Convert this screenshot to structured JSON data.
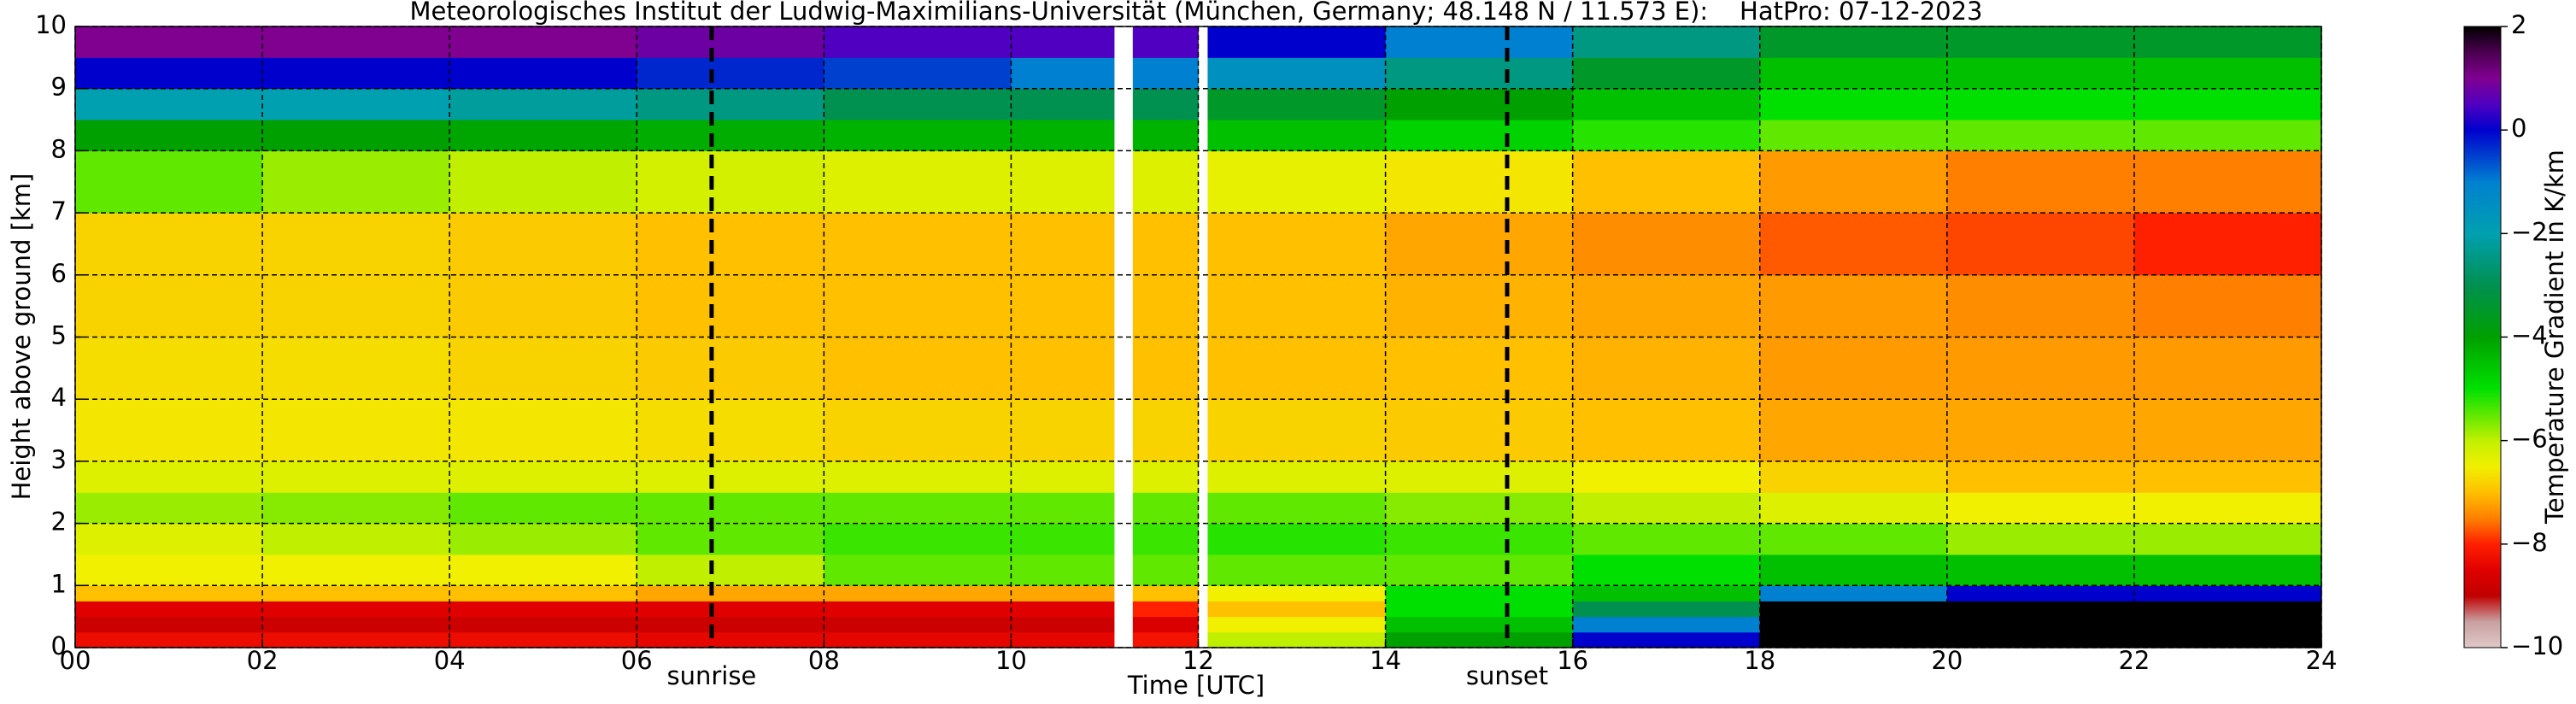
{
  "chart_data": {
    "type": "heatmap",
    "title": "Meteorologisches Institut der Ludwig-Maximilians-Universität (München, Germany; 48.148 N / 11.573 E):    HatPro: 07-12-2023",
    "xlabel": "Time [UTC]",
    "ylabel": "Height above ground [km]",
    "colorbar_label": "Temperature Gradient in K/km",
    "x_edges": [
      0,
      2,
      4,
      6,
      8,
      10,
      11.1,
      11.3,
      12.0,
      12.1,
      14,
      16,
      18,
      20,
      22,
      24
    ],
    "y_edges": [
      0,
      0.25,
      0.5,
      0.75,
      1,
      1.5,
      2,
      2.5,
      3,
      4,
      5,
      6,
      7,
      8,
      8.5,
      9,
      9.5,
      10
    ],
    "values": [
      [
        -8.3,
        -8.3,
        -8.3,
        -8.4,
        -8.4,
        -8.4,
        null,
        -8.2,
        null,
        -6,
        -4,
        0,
        2,
        2,
        2
      ],
      [
        -8.8,
        -8.8,
        -8.8,
        -8.8,
        -8.8,
        -8.8,
        null,
        -8.6,
        null,
        -6.5,
        -4.5,
        -1,
        2,
        2,
        2
      ],
      [
        -8.5,
        -8.5,
        -8.5,
        -8.5,
        -8.5,
        -8.5,
        null,
        -8,
        null,
        -7,
        -5,
        -3,
        2,
        2,
        2
      ],
      [
        -7,
        -7,
        -7,
        -7.2,
        -7.2,
        -7.2,
        null,
        -7,
        null,
        -6.5,
        -5,
        -4.5,
        -1,
        0,
        0
      ],
      [
        -6.5,
        -6.5,
        -6.5,
        -6,
        -5.5,
        -5.5,
        null,
        -5.5,
        null,
        -5.5,
        -5.5,
        -5,
        -4.5,
        -4.5,
        -4.5
      ],
      [
        -6.3,
        -6,
        -5.8,
        -5.5,
        -5.3,
        -5.3,
        null,
        -5.3,
        null,
        -5.2,
        -5.3,
        -5.5,
        -5.5,
        -5.8,
        -5.8
      ],
      [
        -5.8,
        -5.7,
        -5.5,
        -5.5,
        -5.5,
        -5.5,
        null,
        -5.5,
        null,
        -5.5,
        -5.7,
        -6,
        -6.3,
        -6.5,
        -6.5
      ],
      [
        -6.3,
        -6.3,
        -6.3,
        -6.3,
        -6.3,
        -6.3,
        null,
        -6.3,
        null,
        -6.3,
        -6.3,
        -6.5,
        -6.8,
        -7,
        -7
      ],
      [
        -6.6,
        -6.6,
        -6.6,
        -6.7,
        -6.8,
        -6.8,
        null,
        -6.8,
        null,
        -6.8,
        -6.9,
        -7,
        -7.2,
        -7.2,
        -7.2
      ],
      [
        -6.7,
        -6.7,
        -6.8,
        -6.9,
        -7,
        -7,
        null,
        -7,
        null,
        -7,
        -7,
        -7.1,
        -7.3,
        -7.3,
        -7.3
      ],
      [
        -6.8,
        -6.8,
        -6.9,
        -7,
        -7,
        -7,
        null,
        -7,
        null,
        -7,
        -7.1,
        -7.2,
        -7.3,
        -7.4,
        -7.5
      ],
      [
        -6.8,
        -6.8,
        -6.9,
        -7,
        -7,
        -7,
        null,
        -7,
        null,
        -7,
        -7.2,
        -7.4,
        -7.7,
        -7.8,
        -8
      ],
      [
        -5.5,
        -5.8,
        -6,
        -6.2,
        -6.3,
        -6.3,
        null,
        -6.3,
        null,
        -6.4,
        -6.6,
        -7,
        -7.3,
        -7.5,
        -7.5
      ],
      [
        -4,
        -4,
        -4.1,
        -4.2,
        -4.3,
        -4.3,
        null,
        -4.3,
        null,
        -4.5,
        -4.8,
        -5.2,
        -5.5,
        -5.5,
        -5.5
      ],
      [
        -2,
        -2,
        -2.2,
        -2.5,
        -3,
        -3,
        null,
        -3,
        null,
        -3.5,
        -4,
        -4.5,
        -5,
        -5,
        -5
      ],
      [
        0,
        0,
        0,
        -0.3,
        -0.5,
        -1,
        null,
        -1,
        null,
        -1.5,
        -2.5,
        -3.5,
        -4.5,
        -4.5,
        -4.5
      ],
      [
        1,
        1,
        1,
        0.8,
        0.5,
        0.5,
        null,
        0.5,
        null,
        0,
        -1,
        -2.5,
        -3.5,
        -3.5,
        -3.5
      ]
    ],
    "colorscale": [
      [
        -10,
        "#e0c8c8"
      ],
      [
        -9.5,
        "#c8a0a0"
      ],
      [
        -9,
        "#c00000"
      ],
      [
        -8.5,
        "#e00000"
      ],
      [
        -8,
        "#ff2000"
      ],
      [
        -7.5,
        "#ff8000"
      ],
      [
        -7,
        "#ffc000"
      ],
      [
        -6.5,
        "#f0f000"
      ],
      [
        -6,
        "#c0f000"
      ],
      [
        -5,
        "#00e000"
      ],
      [
        -4,
        "#00a000"
      ],
      [
        -3,
        "#009050"
      ],
      [
        -2,
        "#00a0b0"
      ],
      [
        -1,
        "#0080d0"
      ],
      [
        0,
        "#0000cd"
      ],
      [
        0.5,
        "#5000c0"
      ],
      [
        1,
        "#800090"
      ],
      [
        1.5,
        "#4b0050"
      ],
      [
        2,
        "#000000"
      ]
    ],
    "clim": [
      -10,
      2
    ],
    "cticks": [
      {
        "value": -10,
        "label": "−10"
      },
      {
        "value": -8,
        "label": "−8"
      },
      {
        "value": -6,
        "label": "−6"
      },
      {
        "value": -4,
        "label": "−4"
      },
      {
        "value": -2,
        "label": "−2"
      },
      0,
      2
    ],
    "xlim": [
      0,
      24
    ],
    "ylim": [
      0,
      10
    ],
    "xticks": [
      {
        "value": 0,
        "label": "00"
      },
      {
        "value": 2,
        "label": "02"
      },
      {
        "value": 4,
        "label": "04"
      },
      {
        "value": 6,
        "label": "06"
      },
      {
        "value": 8,
        "label": "08"
      },
      10,
      12,
      14,
      16,
      18,
      20,
      22,
      24
    ],
    "yticks": [
      0,
      1,
      2,
      3,
      4,
      5,
      6,
      7,
      8,
      9,
      10
    ],
    "grid": true,
    "vlines": [
      {
        "x": 6.8,
        "label": "sunrise"
      },
      {
        "x": 15.3,
        "label": "sunset"
      }
    ]
  }
}
